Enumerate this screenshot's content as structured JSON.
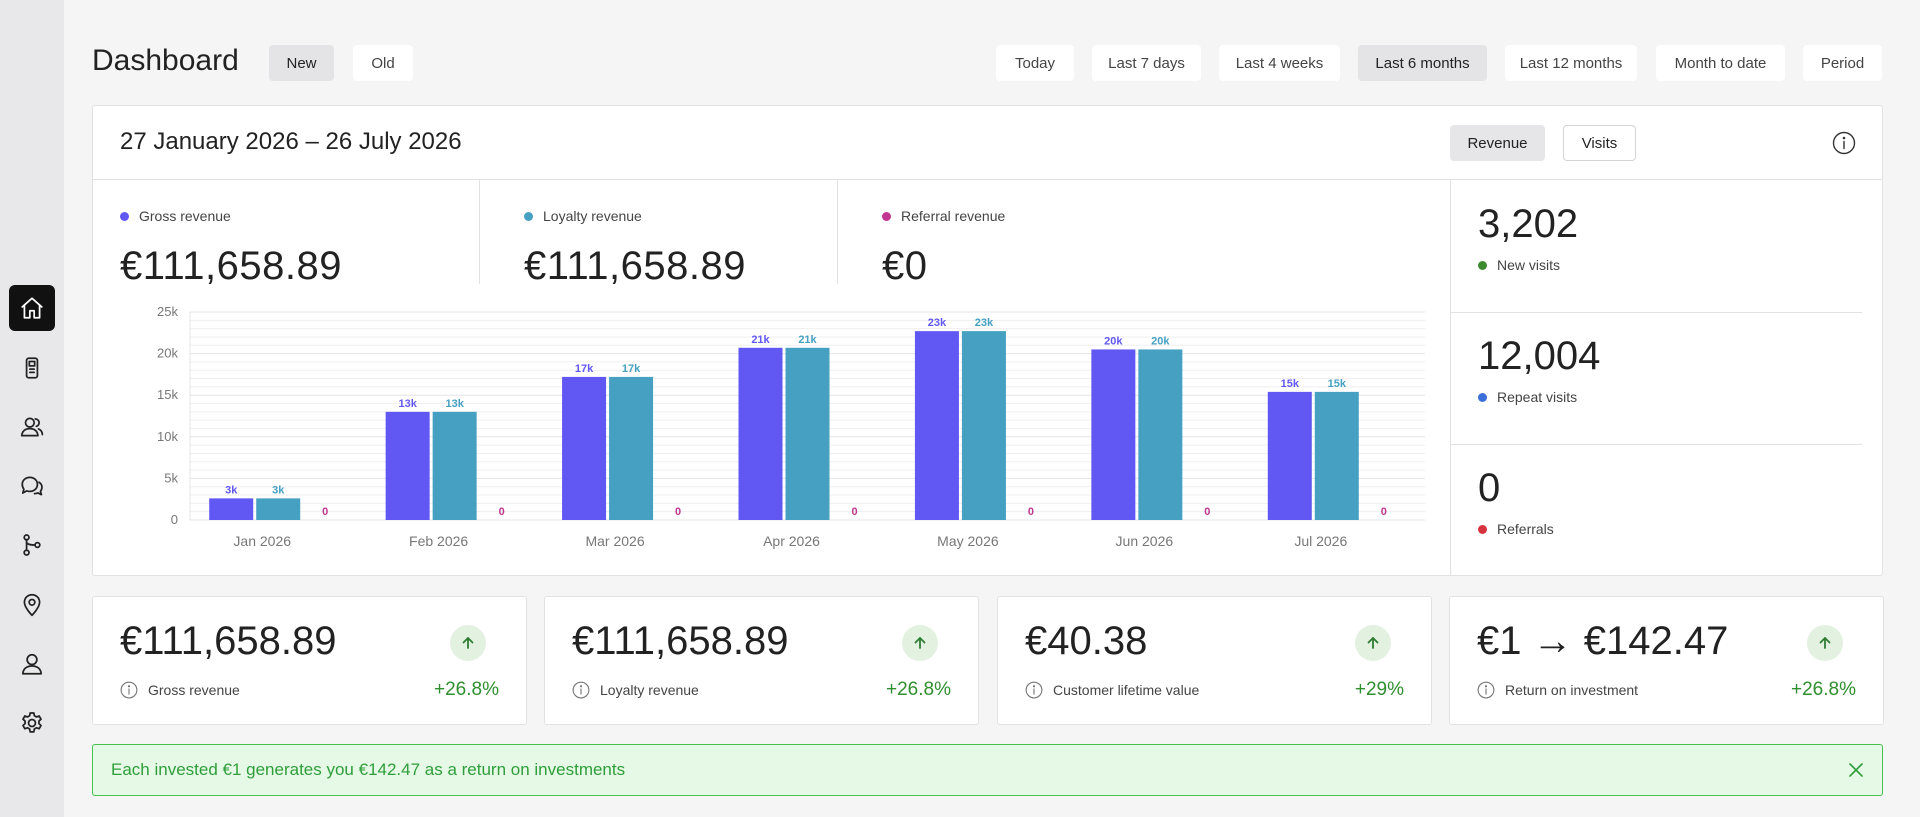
{
  "page": {
    "title": "Dashboard"
  },
  "segment_tabs": [
    {
      "label": "New",
      "selected": true
    },
    {
      "label": "Old",
      "selected": false
    }
  ],
  "period_tabs": [
    {
      "label": "Today",
      "selected": false
    },
    {
      "label": "Last 7 days",
      "selected": false
    },
    {
      "label": "Last 4 weeks",
      "selected": false
    },
    {
      "label": "Last 6 months",
      "selected": true
    },
    {
      "label": "Last 12 months",
      "selected": false
    },
    {
      "label": "Month to date",
      "selected": false
    },
    {
      "label": "Period",
      "selected": false
    }
  ],
  "sidebar": {
    "items": [
      {
        "icon": "home-icon",
        "active": true
      },
      {
        "icon": "device-icon",
        "active": false
      },
      {
        "icon": "users-icon",
        "active": false
      },
      {
        "icon": "chat-icon",
        "active": false
      },
      {
        "icon": "branch-icon",
        "active": false
      },
      {
        "icon": "location-icon",
        "active": false
      },
      {
        "icon": "user-icon",
        "active": false
      },
      {
        "icon": "gear-icon",
        "active": false
      }
    ]
  },
  "main_card": {
    "date_range": "27 January 2026 – 26 July 2026",
    "toggle": [
      {
        "label": "Revenue",
        "selected": true
      },
      {
        "label": "Visits",
        "selected": false
      }
    ],
    "metrics": [
      {
        "label": "Gross revenue",
        "value": "€111,658.89",
        "color": "#6157f2"
      },
      {
        "label": "Loyalty revenue",
        "value": "€111,658.89",
        "color": "#45a0c2"
      },
      {
        "label": "Referral revenue",
        "value": "€0",
        "color": "#c0358f"
      }
    ],
    "side_stats": [
      {
        "value": "3,202",
        "label": "New visits",
        "color": "#3c8a2e"
      },
      {
        "value": "12,004",
        "label": "Repeat visits",
        "color": "#3d6fd8"
      },
      {
        "value": "0",
        "label": "Referrals",
        "color": "#d6333f"
      }
    ]
  },
  "chart_data": {
    "type": "bar",
    "categories": [
      "Jan 2026",
      "Feb 2026",
      "Mar 2026",
      "Apr 2026",
      "May 2026",
      "Jun 2026",
      "Jul 2026"
    ],
    "series": [
      {
        "name": "Gross revenue",
        "color": "#6157f2",
        "values": [
          2600,
          13000,
          17200,
          20700,
          22700,
          20500,
          15400
        ],
        "labels": [
          "3k",
          "13k",
          "17k",
          "21k",
          "23k",
          "20k",
          "15k"
        ]
      },
      {
        "name": "Loyalty revenue",
        "color": "#45a0c2",
        "values": [
          2600,
          13000,
          17200,
          20700,
          22700,
          20500,
          15400
        ],
        "labels": [
          "3k",
          "13k",
          "17k",
          "21k",
          "23k",
          "20k",
          "15k"
        ]
      },
      {
        "name": "Referral revenue",
        "color": "#c0358f",
        "values": [
          0,
          0,
          0,
          0,
          0,
          0,
          0
        ],
        "labels": [
          "0",
          "0",
          "0",
          "0",
          "0",
          "0",
          "0"
        ]
      }
    ],
    "yticks": [
      "0",
      "5k",
      "10k",
      "15k",
      "20k",
      "25k"
    ],
    "ylim": [
      0,
      25000
    ],
    "grid": true
  },
  "kpis": [
    {
      "value": "€111,658.89",
      "label": "Gross revenue",
      "change": "+26.8%"
    },
    {
      "value": "€111,658.89",
      "label": "Loyalty revenue",
      "change": "+26.8%"
    },
    {
      "value": "€40.38",
      "label": "Customer lifetime value",
      "change": "+29%"
    },
    {
      "value": "€1 → €142.47",
      "label": "Return on investment",
      "change": "+26.8%"
    }
  ],
  "banner": {
    "text": "Each invested €1 generates you €142.47 as a return on investments"
  },
  "colors": {
    "accent": "#6157f2",
    "secondary": "#45a0c2",
    "referral": "#c0358f",
    "positive": "#2f8f2f",
    "banner_border": "#46c24f"
  }
}
